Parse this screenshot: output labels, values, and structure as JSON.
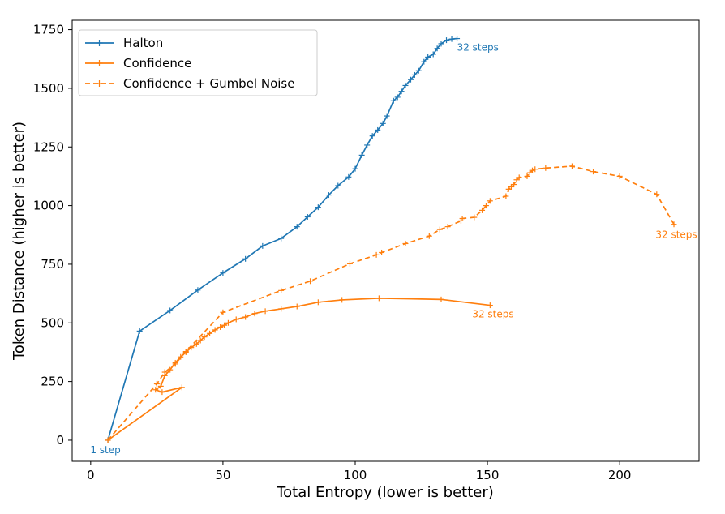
{
  "chart_data": {
    "type": "line",
    "xlabel": "Total Entropy (lower is better)",
    "ylabel": "Token Distance (higher is better)",
    "xlim": [
      -7,
      230
    ],
    "ylim": [
      -90,
      1790
    ],
    "xticks": [
      0,
      50,
      100,
      150,
      200
    ],
    "yticks": [
      0,
      250,
      500,
      750,
      1000,
      1250,
      1500,
      1750
    ],
    "grid": false,
    "legend_position": "top-left",
    "series": [
      {
        "name": "Halton",
        "color": "#1f77b4",
        "dashed": false,
        "x": [
          6.5,
          18.5,
          30,
          40.5,
          50,
          58.5,
          65,
          72,
          78,
          82,
          86,
          90,
          93.5,
          97.5,
          100,
          102.5,
          104.5,
          106.5,
          108.5,
          110.5,
          112,
          114.5,
          116,
          117.5,
          119,
          121,
          122.5,
          124,
          126,
          127.5,
          129.5,
          131,
          132.5,
          134.5,
          136.5,
          138.5
        ],
        "y": [
          0,
          465,
          553,
          640,
          713,
          773,
          828,
          860,
          910,
          952,
          993,
          1045,
          1085,
          1122,
          1157,
          1215,
          1258,
          1297,
          1322,
          1350,
          1382,
          1447,
          1462,
          1487,
          1512,
          1537,
          1557,
          1575,
          1613,
          1633,
          1645,
          1670,
          1690,
          1705,
          1710,
          1712
        ],
        "start_label": "1 step",
        "end_label": "32 steps"
      },
      {
        "name": "Confidence",
        "color": "#ff7f0e",
        "dashed": false,
        "x": [
          6.5,
          34.5,
          27,
          24.5,
          26.5,
          28,
          30,
          32,
          34,
          36,
          38,
          40,
          41.5,
          43,
          45,
          47,
          49,
          50.5,
          52,
          55,
          58.5,
          62,
          66,
          72,
          78,
          86,
          95,
          109,
          132.5,
          151
        ],
        "y": [
          0,
          225,
          205,
          215,
          230,
          275,
          300,
          330,
          355,
          375,
          395,
          410,
          425,
          440,
          455,
          470,
          482,
          490,
          500,
          515,
          525,
          540,
          550,
          560,
          570,
          588,
          598,
          605,
          600,
          575
        ],
        "end_label": "32 steps"
      },
      {
        "name": "Confidence + Gumbel Noise",
        "color": "#ff7f0e",
        "dashed": true,
        "x": [
          6.5,
          25,
          28,
          32,
          36,
          50,
          72,
          83,
          98,
          108,
          110,
          119,
          128,
          132,
          135,
          140,
          140.5,
          145,
          148,
          149.5,
          151,
          157,
          158,
          159,
          160,
          161,
          162,
          165,
          166,
          167,
          168,
          172,
          182,
          190,
          200,
          214,
          220.5
        ],
        "y": [
          0,
          240,
          290,
          325,
          378,
          545,
          638,
          678,
          752,
          790,
          800,
          838,
          870,
          898,
          910,
          935,
          945,
          950,
          980,
          1000,
          1020,
          1040,
          1070,
          1080,
          1090,
          1110,
          1120,
          1125,
          1140,
          1150,
          1155,
          1160,
          1168,
          1145,
          1125,
          1048,
          920
        ],
        "end_label": "32 steps"
      }
    ]
  }
}
